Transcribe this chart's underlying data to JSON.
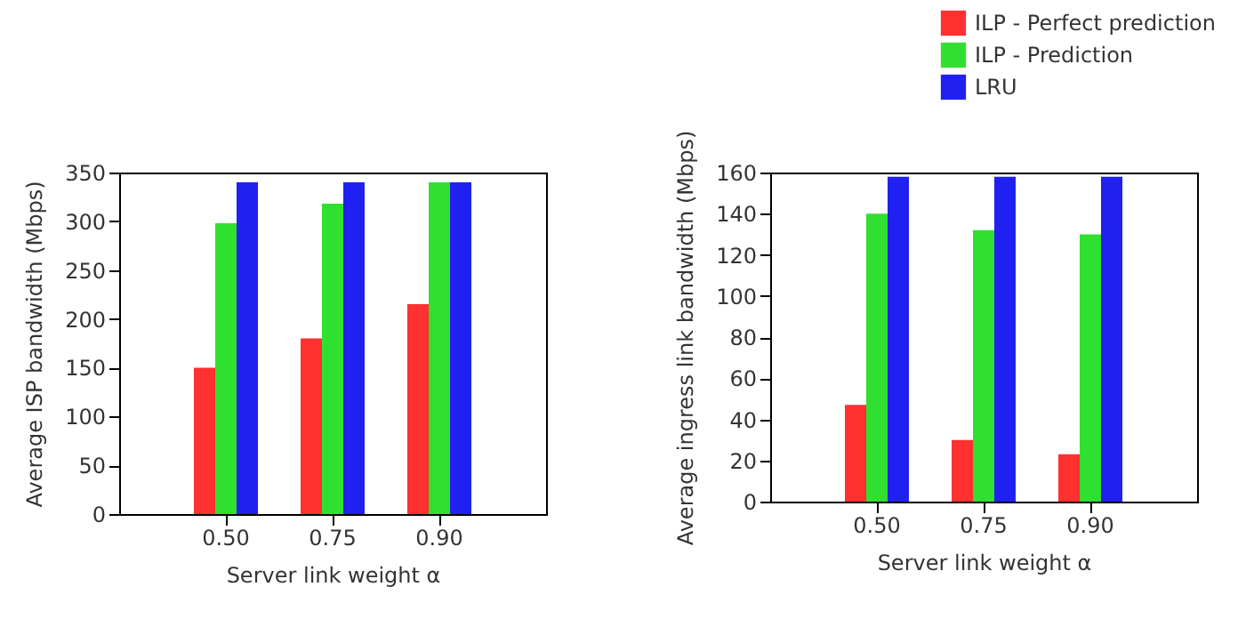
{
  "chart_data": [
    {
      "type": "bar",
      "categories": [
        "0.50",
        "0.75",
        "0.90"
      ],
      "xlabel": "Server link weight α",
      "ylabel": "Average ISP bandwidth (Mbps)",
      "ylim": [
        0,
        350
      ],
      "yticks": [
        0,
        50,
        100,
        150,
        200,
        250,
        300,
        350
      ],
      "grid": false,
      "series": [
        {
          "color": "#ff3030",
          "values": [
            150,
            180,
            215
          ]
        },
        {
          "color": "#30e030",
          "values": [
            298,
            318,
            340
          ]
        },
        {
          "color": "#2020f0",
          "values": [
            340,
            340,
            340
          ]
        }
      ]
    },
    {
      "type": "bar",
      "categories": [
        "0.50",
        "0.75",
        "0.90"
      ],
      "xlabel": "Server link weight α",
      "ylabel": "Average ingress link bandwidth (Mbps)",
      "ylim": [
        0,
        160
      ],
      "yticks": [
        0,
        20,
        40,
        60,
        80,
        100,
        120,
        140,
        160
      ],
      "grid": false,
      "legend": "top right",
      "series": [
        {
          "name": "ILP - Perfect prediction",
          "color": "#ff3030",
          "values": [
            47,
            30,
            23
          ]
        },
        {
          "name": "ILP - Prediction",
          "color": "#30e030",
          "values": [
            140,
            132,
            130
          ]
        },
        {
          "name": "LRU",
          "color": "#2020f0",
          "values": [
            158,
            158,
            158
          ]
        }
      ]
    }
  ]
}
